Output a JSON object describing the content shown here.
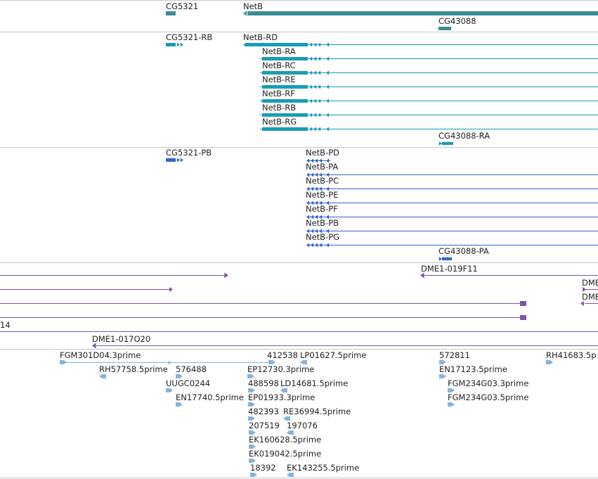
{
  "colors": {
    "gene": "#3a8e94",
    "transcript_rna": "#1a9cb4",
    "protein": "#3366c8",
    "clone": "#7a56aa",
    "est": "#86b4d8",
    "divider": "#c8c8c8"
  },
  "tracks": {
    "genes": [
      {
        "label": "CG5321",
        "feature": "gene",
        "icon": "gene-bar"
      },
      {
        "label": "NetB",
        "feature": "gene",
        "icon": "gene-bar"
      },
      {
        "label": "CG43088",
        "feature": "gene",
        "icon": "gene-bar"
      }
    ],
    "transcripts": [
      {
        "label": "CG5321-RB",
        "feature": "transcript",
        "icon": "arrow-right"
      },
      {
        "label": "NetB-RD",
        "feature": "transcript",
        "icon": "arrow-left"
      },
      {
        "label": "NetB-RA",
        "feature": "transcript",
        "icon": "arrow-left"
      },
      {
        "label": "NetB-RC",
        "feature": "transcript",
        "icon": "arrow-left"
      },
      {
        "label": "NetB-RE",
        "feature": "transcript",
        "icon": "arrow-left"
      },
      {
        "label": "NetB-RF",
        "feature": "transcript",
        "icon": "arrow-left"
      },
      {
        "label": "NetB-RB",
        "feature": "transcript",
        "icon": "arrow-left"
      },
      {
        "label": "NetB-RG",
        "feature": "transcript",
        "icon": "arrow-left"
      },
      {
        "label": "CG43088-RA",
        "feature": "transcript",
        "icon": "arrow-right"
      }
    ],
    "proteins": [
      {
        "label": "CG5321-PB",
        "feature": "protein",
        "icon": "arrow-right"
      },
      {
        "label": "NetB-PD",
        "feature": "protein",
        "icon": "arrow-left"
      },
      {
        "label": "NetB-PA",
        "feature": "protein",
        "icon": "arrow-left"
      },
      {
        "label": "NetB-PC",
        "feature": "protein",
        "icon": "arrow-left"
      },
      {
        "label": "NetB-PE",
        "feature": "protein",
        "icon": "arrow-left"
      },
      {
        "label": "NetB-PF",
        "feature": "protein",
        "icon": "arrow-left"
      },
      {
        "label": "NetB-PB",
        "feature": "protein",
        "icon": "arrow-left"
      },
      {
        "label": "NetB-PG",
        "feature": "protein",
        "icon": "arrow-left"
      },
      {
        "label": "CG43088-PA",
        "feature": "protein",
        "icon": "arrow-right"
      }
    ],
    "clones": [
      {
        "label": "DME1-019F11",
        "feature": "clone",
        "icon": "arrow-left"
      },
      {
        "label": "DME",
        "feature": "clone",
        "icon": "arrow-right"
      },
      {
        "label": "DME",
        "feature": "clone",
        "icon": "arrow-left"
      },
      {
        "label": "14",
        "feature": "clone",
        "icon": "line"
      },
      {
        "label": "DME1-017O20",
        "feature": "clone",
        "icon": "arrow-left"
      }
    ],
    "ests": [
      {
        "label": "FGM301D04.3prime",
        "feature": "est",
        "icon": "arrow-right"
      },
      {
        "label": "412538",
        "feature": "est",
        "icon": "arrow-right"
      },
      {
        "label": "LP01627.5prime",
        "feature": "est",
        "icon": "arrow-left"
      },
      {
        "label": "572811",
        "feature": "est",
        "icon": "arrow-right"
      },
      {
        "label": "RH41683.5p",
        "feature": "est",
        "icon": "arrow-right"
      },
      {
        "label": "RH57758.5prime",
        "feature": "est",
        "icon": "arrow-left"
      },
      {
        "label": "576488",
        "feature": "est",
        "icon": "arrow-right"
      },
      {
        "label": "EP12730.3prime",
        "feature": "est",
        "icon": "arrow-right"
      },
      {
        "label": "EN17123.5prime",
        "feature": "est",
        "icon": "arrow-right"
      },
      {
        "label": "UUGC0244",
        "feature": "est",
        "icon": "arrow-right"
      },
      {
        "label": "488598",
        "feature": "est",
        "icon": "arrow-right"
      },
      {
        "label": "LD14681.5prime",
        "feature": "est",
        "icon": "arrow-left"
      },
      {
        "label": "FGM234G03.3prime",
        "feature": "est",
        "icon": "arrow-right"
      },
      {
        "label": "EN17740.5prime",
        "feature": "est",
        "icon": "arrow-right"
      },
      {
        "label": "EP01933.3prime",
        "feature": "est",
        "icon": "arrow-right"
      },
      {
        "label": "FGM234G03.5prime",
        "feature": "est",
        "icon": "arrow-right"
      },
      {
        "label": "482393",
        "feature": "est",
        "icon": "arrow-right"
      },
      {
        "label": "RE36994.5prime",
        "feature": "est",
        "icon": "arrow-left"
      },
      {
        "label": "207519",
        "feature": "est",
        "icon": "arrow-right"
      },
      {
        "label": "197076",
        "feature": "est",
        "icon": "arrow-left"
      },
      {
        "label": "EK160628.5prime",
        "feature": "est",
        "icon": "arrow-right"
      },
      {
        "label": "EK019042.5prime",
        "feature": "est",
        "icon": "arrow-right"
      },
      {
        "label": "18392",
        "feature": "est",
        "icon": "arrow-right"
      },
      {
        "label": "EK143255.5prime",
        "feature": "est",
        "icon": "arrow-left"
      }
    ]
  }
}
